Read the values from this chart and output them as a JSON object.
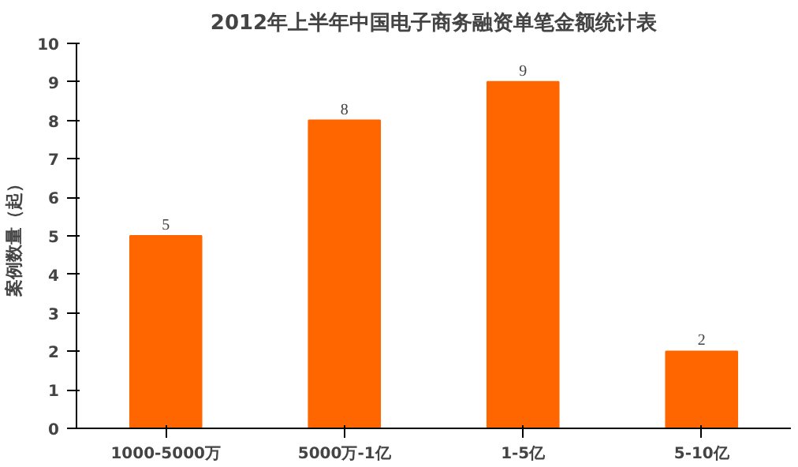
{
  "chart_data": {
    "type": "bar",
    "title": "2012年上半年中国电子商务融资单笔金额统计表",
    "ylabel": "案例数量（起）",
    "categories": [
      "1000-5000万",
      "5000万-1亿",
      "1-5亿",
      "5-10亿"
    ],
    "values": [
      5,
      8,
      9,
      2
    ],
    "color": "#ff6600",
    "ylim": [
      0,
      10
    ],
    "yticks": [
      0,
      1,
      2,
      3,
      4,
      5,
      6,
      7,
      8,
      9,
      10
    ],
    "grid": false,
    "data_labels": true
  }
}
